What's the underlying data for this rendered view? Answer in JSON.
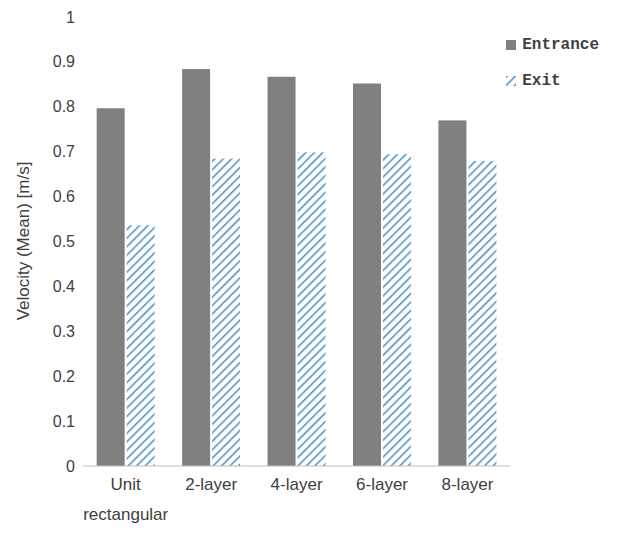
{
  "chart_data": {
    "type": "bar",
    "y_label": "Velocity (Mean) [m/s]",
    "categories": [
      "Unit rectangular",
      "2-layer",
      "4-layer",
      "6-layer",
      "8-layer"
    ],
    "series": [
      {
        "name": "Entrance",
        "color": "#808080",
        "values": [
          0.795,
          0.882,
          0.865,
          0.85,
          0.768
        ]
      },
      {
        "name": "Exit",
        "color": "#4a8ec4",
        "values": [
          0.535,
          0.683,
          0.697,
          0.693,
          0.678
        ]
      }
    ],
    "ylim": [
      0,
      1
    ],
    "yticks": [
      0,
      0.1,
      0.2,
      0.3,
      0.4,
      0.5,
      0.6,
      0.7,
      0.8,
      0.9,
      1
    ],
    "grid": false,
    "legend": "upper right"
  }
}
